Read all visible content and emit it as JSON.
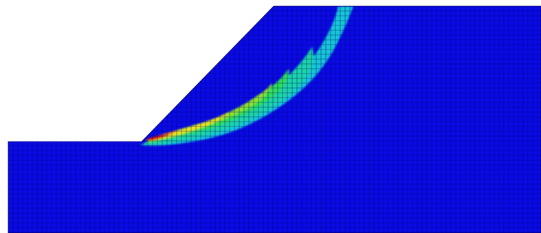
{
  "figure": {
    "kind": "finite-element slope stability contour plot",
    "colors": {
      "background": "#ffffff",
      "mesh_base": "#0a0ae6",
      "mesh_line": "#02026a",
      "contour_cyan": "#13c7d8",
      "contour_teal": "#1bd5a8",
      "contour_green": "#2fe05a",
      "contour_lime": "#8ee42a",
      "contour_yellow": "#e8e61c",
      "contour_orange": "#ff9a12",
      "contour_red": "#e01010"
    },
    "legend_visible": false,
    "labels_visible": false
  }
}
